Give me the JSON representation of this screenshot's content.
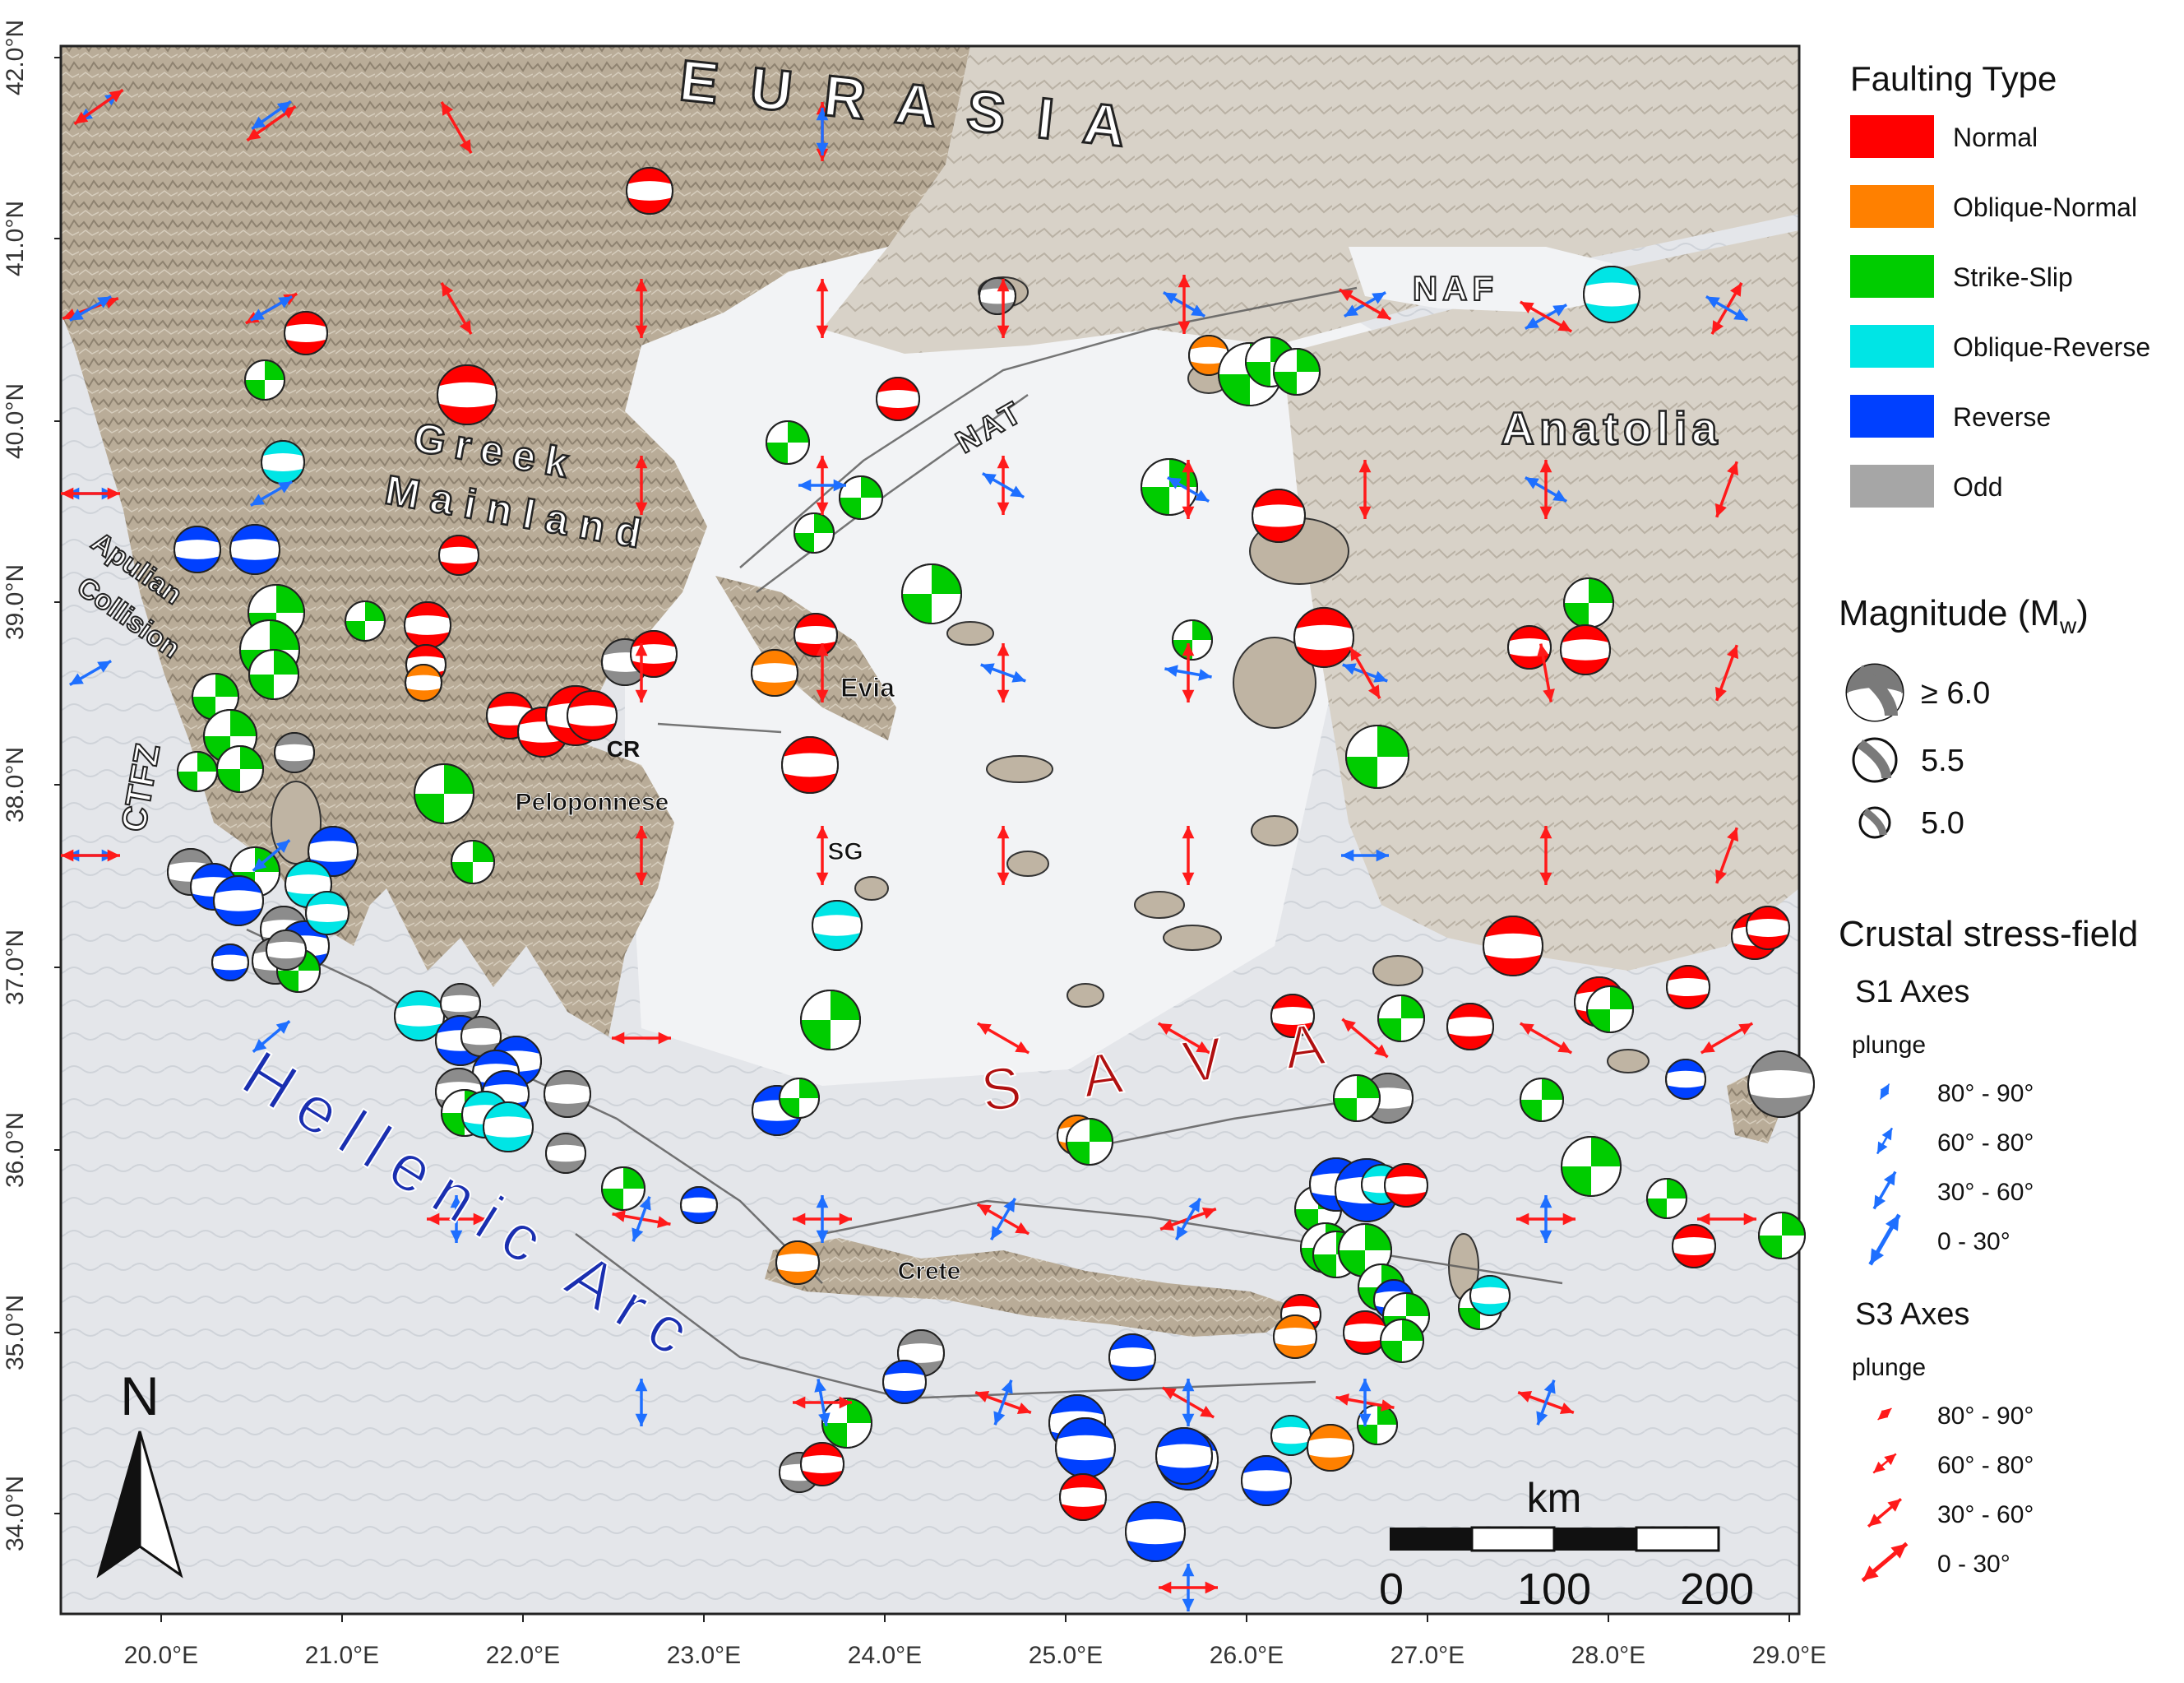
{
  "map": {
    "lon_ticks": [
      "20.0°E",
      "21.0°E",
      "22.0°E",
      "23.0°E",
      "24.0°E",
      "25.0°E",
      "26.0°E",
      "27.0°E",
      "28.0°E",
      "29.0°E"
    ],
    "lat_ticks": [
      "42.0°N",
      "41.0°N",
      "40.0°N",
      "39.0°N",
      "38.0°N",
      "37.0°N",
      "36.0°N",
      "35.0°N",
      "34.0°N"
    ],
    "region_labels": {
      "eurasia": "E U R A S I A",
      "greek": "Greek",
      "mainland": "Mainland",
      "anatolia": "Anatolia",
      "apulian": "Apulian",
      "collision": "Collision",
      "ctfz": "CTFZ",
      "hellenic_arc": "Hellenic Arc",
      "sava": "S A V A",
      "naf": "NAF",
      "nat": "NAT",
      "evia": "Evia",
      "cr": "CR",
      "peloponnese": "Peloponnese",
      "sg": "SG",
      "crete": "Crete"
    },
    "north_arrow": "N",
    "scale_bar": {
      "unit": "km",
      "labels": [
        "0",
        "100",
        "200"
      ]
    }
  },
  "legend": {
    "faulting_title": "Faulting Type",
    "faulting_types": [
      {
        "label": "Normal",
        "color": "#ff0000"
      },
      {
        "label": "Oblique-Normal",
        "color": "#ff8000"
      },
      {
        "label": "Strike-Slip",
        "color": "#00cc00"
      },
      {
        "label": "Oblique-Reverse",
        "color": "#00e5e5"
      },
      {
        "label": "Reverse",
        "color": "#0040ff"
      },
      {
        "label": "Odd",
        "color": "#a6a6a6"
      }
    ],
    "magnitude_title": "Magnitude (M",
    "magnitude_sub": "w",
    "magnitude_close": ")",
    "magnitudes": [
      "≥ 6.0",
      "5.5",
      "5.0"
    ],
    "stress_title": "Crustal stress-field",
    "s1_title": "S1 Axes",
    "s3_title": "S3 Axes",
    "plunge_label": "plunge",
    "plunge_classes": [
      "80° - 90°",
      "60° - 80°",
      "30° - 60°",
      "0 - 30°"
    ],
    "s1_color": "#1e6fff",
    "s3_color": "#ff1a1a"
  }
}
